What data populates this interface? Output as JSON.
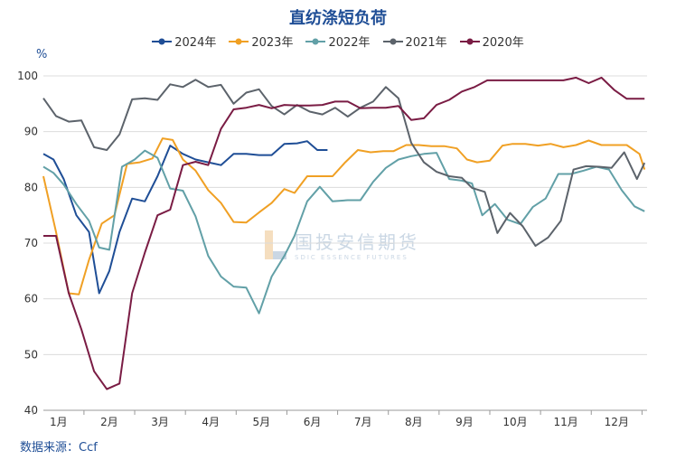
{
  "chart_data": {
    "type": "line",
    "title": "直纺涤短负荷",
    "ylabel": "%",
    "ylim": [
      40,
      100
    ],
    "yticks": [
      40,
      50,
      60,
      70,
      80,
      90,
      100
    ],
    "xlim": [
      0.7,
      12.6
    ],
    "month_labels": [
      "1月",
      "2月",
      "3月",
      "4月",
      "5月",
      "6月",
      "7月",
      "8月",
      "9月",
      "10月",
      "11月",
      "12月"
    ],
    "grid": "horizontal",
    "legend_position": "top",
    "source": "数据来源：Ccf",
    "series": [
      {
        "name": "2024年",
        "color": "#1f4e96",
        "x": [
          0.7,
          0.9,
          1.1,
          1.35,
          1.6,
          1.8,
          2.0,
          2.2,
          2.45,
          2.7,
          2.95,
          3.2,
          3.45,
          3.7,
          3.95,
          4.2,
          4.45,
          4.7,
          4.95,
          5.2,
          5.45,
          5.7,
          5.9,
          6.1,
          6.3
        ],
        "y": [
          86,
          85,
          81.5,
          75,
          72,
          61,
          65,
          72,
          78,
          77.5,
          82,
          87.5,
          86,
          85,
          84.5,
          84,
          86,
          86,
          85.8,
          85.8,
          87.8,
          87.9,
          88.3,
          86.7,
          86.7
        ]
      },
      {
        "name": "2023年",
        "color": "#f0a024",
        "x": [
          0.7,
          0.95,
          1.2,
          1.4,
          1.6,
          1.85,
          2.1,
          2.35,
          2.6,
          2.85,
          3.05,
          3.25,
          3.45,
          3.7,
          3.95,
          4.2,
          4.45,
          4.7,
          4.95,
          5.2,
          5.45,
          5.65,
          5.9,
          6.15,
          6.4,
          6.65,
          6.9,
          7.15,
          7.4,
          7.6,
          7.85,
          8.1,
          8.35,
          8.6,
          8.85,
          9.05,
          9.25,
          9.5,
          9.75,
          9.95,
          10.2,
          10.45,
          10.7,
          10.95,
          11.2,
          11.45,
          11.7,
          11.95,
          12.2,
          12.45,
          12.55
        ],
        "y": [
          82,
          72,
          61,
          60.8,
          67,
          73.5,
          75,
          84.2,
          84.5,
          85.2,
          88.8,
          88.5,
          85,
          83,
          79.5,
          77.2,
          73.8,
          73.7,
          75.5,
          77.2,
          79.7,
          79,
          82,
          82,
          82,
          84.5,
          86.7,
          86.3,
          86.5,
          86.5,
          87.6,
          87.6,
          87.4,
          87.4,
          87,
          85,
          84.5,
          84.8,
          87.5,
          87.8,
          87.8,
          87.5,
          87.8,
          87.2,
          87.6,
          88.4,
          87.6,
          87.6,
          87.6,
          86,
          83.2
        ]
      },
      {
        "name": "2022年",
        "color": "#62a0a7",
        "x": [
          0.7,
          0.9,
          1.1,
          1.35,
          1.6,
          1.8,
          2.0,
          2.25,
          2.5,
          2.7,
          2.95,
          3.2,
          3.45,
          3.7,
          3.95,
          4.2,
          4.45,
          4.7,
          4.95,
          5.2,
          5.45,
          5.65,
          5.9,
          6.15,
          6.4,
          6.7,
          6.95,
          7.2,
          7.45,
          7.7,
          7.95,
          8.2,
          8.45,
          8.7,
          8.95,
          9.15,
          9.35,
          9.6,
          9.85,
          10.1,
          10.35,
          10.6,
          10.85,
          11.1,
          11.35,
          11.6,
          11.85,
          12.1,
          12.35,
          12.55
        ],
        "y": [
          83.7,
          82.6,
          80.5,
          77,
          74,
          69.2,
          68.8,
          83.7,
          85,
          86.6,
          85.3,
          79.8,
          79.4,
          74.8,
          67.7,
          64,
          62.2,
          62,
          57.4,
          64,
          67.7,
          71.3,
          77.5,
          80.1,
          77.5,
          77.7,
          77.7,
          81,
          83.5,
          85,
          85.6,
          86,
          86.2,
          81.5,
          81.2,
          80.7,
          75,
          77,
          74.2,
          73.4,
          76.5,
          78,
          82.4,
          82.4,
          83,
          83.7,
          83.2,
          79.5,
          76.6,
          75.7
        ]
      },
      {
        "name": "2021年",
        "color": "#5c636b",
        "x": [
          0.7,
          0.95,
          1.2,
          1.45,
          1.7,
          1.95,
          2.2,
          2.45,
          2.7,
          2.95,
          3.2,
          3.45,
          3.7,
          3.95,
          4.2,
          4.45,
          4.7,
          4.95,
          5.2,
          5.45,
          5.7,
          5.95,
          6.2,
          6.45,
          6.7,
          6.95,
          7.2,
          7.45,
          7.7,
          7.95,
          8.2,
          8.45,
          8.7,
          8.95,
          9.15,
          9.4,
          9.65,
          9.9,
          10.15,
          10.4,
          10.65,
          10.9,
          11.15,
          11.4,
          11.65,
          11.9,
          12.15,
          12.4,
          12.55
        ],
        "y": [
          96,
          92.8,
          91.8,
          92,
          87.2,
          86.7,
          89.5,
          95.8,
          96,
          95.7,
          98.5,
          98,
          99.3,
          98,
          98.4,
          95,
          97,
          97.6,
          94.6,
          93.1,
          94.8,
          93.6,
          93.1,
          94.3,
          92.7,
          94.3,
          95.4,
          98,
          96,
          88,
          84.5,
          82.8,
          82,
          81.7,
          79.9,
          79.2,
          71.8,
          75.4,
          73,
          69.5,
          71,
          74,
          83.2,
          83.8,
          83.7,
          83.5,
          86.3,
          81.5,
          84.4
        ]
      },
      {
        "name": "2020年",
        "color": "#7a1c44",
        "x": [
          0.7,
          0.95,
          1.2,
          1.45,
          1.7,
          1.95,
          2.2,
          2.45,
          2.7,
          2.95,
          3.2,
          3.45,
          3.7,
          3.95,
          4.2,
          4.45,
          4.7,
          4.95,
          5.2,
          5.45,
          5.7,
          5.95,
          6.2,
          6.45,
          6.7,
          6.95,
          7.2,
          7.45,
          7.7,
          7.95,
          8.2,
          8.45,
          8.7,
          8.95,
          9.2,
          9.45,
          9.7,
          9.95,
          10.2,
          10.45,
          10.7,
          10.95,
          11.2,
          11.45,
          11.7,
          11.95,
          12.2,
          12.45,
          12.55
        ],
        "y": [
          71.3,
          71.3,
          61,
          54.5,
          47,
          43.8,
          44.8,
          61,
          68.3,
          75,
          76,
          84,
          84.6,
          84,
          90.5,
          94,
          94.3,
          94.8,
          94.2,
          94.8,
          94.7,
          94.7,
          94.8,
          95.4,
          95.4,
          94.2,
          94.3,
          94.3,
          94.6,
          92.1,
          92.4,
          94.8,
          95.7,
          97.2,
          98,
          99.2,
          99.2,
          99.2,
          99.2,
          99.2,
          99.2,
          99.2,
          99.7,
          98.7,
          99.7,
          97.5,
          95.9,
          95.9,
          95.9
        ]
      }
    ]
  },
  "watermark": {
    "cn": "国投安信期货",
    "en": "SDIC ESSENCE FUTURES"
  }
}
